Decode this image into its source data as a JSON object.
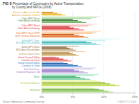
{
  "chart_data": {
    "type": "bar",
    "orientation": "horizontal",
    "title": "FIG 8",
    "subtitle": " Percentage of Commuters by Active Transportation,\nby County and MPOs (2018)",
    "annotations": [
      "Source: American Community Survey",
      "© NEXT TO 2020"
    ],
    "categories": [
      "Berkeley",
      "UC Santa Barbara",
      "Marin",
      "San Francisco-\nOakland-Hayward, CA",
      "Inland Central Valley\nCounties & Cities",
      "Inland Central Valley\nCounties & Cities",
      "Central Coast Cities",
      "Tahoe MPO Desc\nMTD Area Placeholder",
      "Tahoe MPO Desc\nMTD Area Placeholder",
      "Tulsa MPO Rural STIP\nKern Ventura Monterey",
      "Tulsa MPO Rural\nOther Areas Undesig",
      "Tulsa MPO Rural\nOther Areas Undesig",
      "Source: in Area at the 4th\nAmerica Commute Counts"
    ],
    "series": [
      {
        "values": [
          11.5,
          12.5,
          7.8,
          7.5,
          6.5,
          4.8,
          6.0,
          5.5,
          9.5,
          7.5,
          6.8,
          7.2,
          3.8
        ],
        "colors": [
          "#b5de8a",
          "#c8e060",
          "#78d0a0",
          "#c0a8e0",
          "#5898d8",
          "#f08080",
          "#d8b878",
          "#b89870",
          "#a0e0e0",
          "#f09858",
          "#f06868",
          "#78b870",
          "#f8c840"
        ]
      },
      {
        "values": [
          10.8,
          11.8,
          7.0,
          6.8,
          5.8,
          4.2,
          5.5,
          5.0,
          8.8,
          6.8,
          6.0,
          6.5,
          3.2
        ],
        "colors": [
          "#9dd066",
          "#b8d848",
          "#60c890",
          "#b098d8",
          "#4888c8",
          "#e86060",
          "#c8a860",
          "#a88858",
          "#78d0d0",
          "#e87838",
          "#e84848",
          "#60a858",
          "#f0b828"
        ]
      },
      {
        "values": [
          10.0,
          11.0,
          6.2,
          6.0,
          5.0,
          3.5,
          5.0,
          4.5,
          8.0,
          6.0,
          5.2,
          5.8,
          2.5
        ],
        "colors": [
          "#7ab648",
          "#a8c840",
          "#48b878",
          "#9878c8",
          "#3878c0",
          "#d84040",
          "#b89050",
          "#907040",
          "#50c0c0",
          "#e06820",
          "#d83030",
          "#488840",
          "#e0a020"
        ]
      },
      {
        "values": [
          9.2,
          10.2,
          5.5,
          5.2,
          4.2,
          2.8,
          4.5,
          4.0,
          7.2,
          5.2,
          4.5,
          5.0,
          1.8
        ],
        "colors": [
          "#5a9e2f",
          "#90b030",
          "#30a060",
          "#8060b8",
          "#2860a8",
          "#c02020",
          "#a07838",
          "#785830",
          "#30a8a8",
          "#c85010",
          "#c01818",
          "#307028",
          "#c88808"
        ]
      },
      {
        "values": [
          8.5,
          9.5,
          8.5,
          8.2,
          3.5,
          2.2,
          7.0,
          6.0,
          10.2,
          8.2,
          7.5,
          8.0,
          null
        ],
        "colors": [
          "#d4f0a8",
          "#d8ec80",
          "#a0e0c0",
          "#d0c0e8",
          "#80b8e8",
          "#f8a8a8",
          "#e8d0a0",
          "#c8b090",
          "#c0eeee",
          "#f8b880",
          "#f89898",
          "#a0d098",
          null
        ]
      },
      {
        "values": [
          7.8,
          8.8,
          9.2,
          8.8,
          null,
          null,
          null,
          null,
          11.0,
          8.8,
          8.2,
          8.8,
          null
        ],
        "colors": [
          "#e8f8cc",
          "#e8f4a0",
          "#c0f0d8",
          "#e0d8f0",
          null,
          null,
          null,
          null,
          "#d8f8f8",
          "#fcd0a8",
          "#fcc0c0",
          "#c0e0b8",
          null
        ]
      },
      {
        "values": [
          null,
          null,
          null,
          null,
          null,
          null,
          null,
          null,
          12.5,
          9.5,
          9.0,
          9.5,
          null
        ],
        "colors": [
          null,
          null,
          null,
          null,
          null,
          null,
          null,
          null,
          "#e8fcfc",
          "#fee8cc",
          "#fee0e0",
          "#d8f0d0",
          null
        ]
      }
    ],
    "xlim": [
      0,
      15
    ],
    "xticks": [
      {
        "value": 0,
        "label": "0%"
      },
      {
        "value": 5,
        "label": "5%"
      },
      {
        "value": 10,
        "label": "10%"
      },
      {
        "value": 15,
        "label": "15%"
      }
    ],
    "grid": true
  }
}
